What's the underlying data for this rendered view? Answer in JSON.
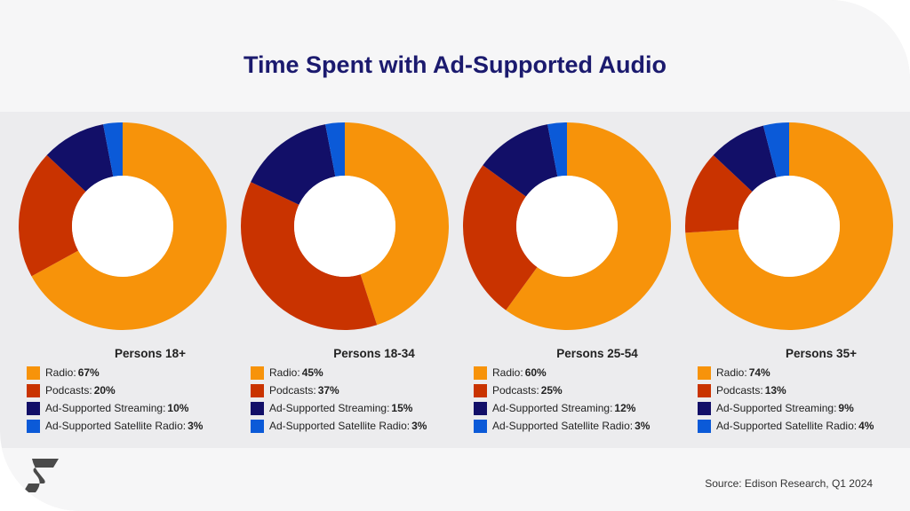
{
  "title": "Time Spent with Ad-Supported Audio",
  "source": "Source: Edison Research, Q1 2024",
  "colors": {
    "Radio": "#f7930a",
    "Podcasts": "#c93300",
    "Ad-Supported Streaming": "#120f68",
    "Ad-Supported Satellite Radio": "#0b5ad8"
  },
  "chart_data": [
    {
      "type": "pie",
      "title": "Persons 18+",
      "categories": [
        "Radio",
        "Podcasts",
        "Ad-Supported Streaming",
        "Ad-Supported Satellite Radio"
      ],
      "labels": [
        "Radio:",
        "Podcasts:",
        "Ad-Supported Streaming:",
        "Ad-Supported Satellite Radio:"
      ],
      "values": [
        67,
        20,
        10,
        3
      ],
      "value_labels": [
        "67%",
        "20%",
        "10%",
        "3%"
      ],
      "unit": "%"
    },
    {
      "type": "pie",
      "title": "Persons 18-34",
      "categories": [
        "Radio",
        "Podcasts",
        "Ad-Supported Streaming",
        "Ad-Supported Satellite Radio"
      ],
      "labels": [
        "Radio:",
        "Podcasts:",
        "Ad-Supported Streaming:",
        "Ad-Supported Satellite Radio:"
      ],
      "values": [
        45,
        37,
        15,
        3
      ],
      "value_labels": [
        "45%",
        "37%",
        "15%",
        "3%"
      ],
      "unit": "%"
    },
    {
      "type": "pie",
      "title": "Persons 25-54",
      "categories": [
        "Radio",
        "Podcasts",
        "Ad-Supported Streaming",
        "Ad-Supported Satellite Radio"
      ],
      "labels": [
        "Radio:",
        "Podcasts:",
        "Ad-Supported Streaming:",
        "Ad-Supported Satellite Radio:"
      ],
      "values": [
        60,
        25,
        12,
        3
      ],
      "value_labels": [
        "60%",
        "25%",
        "12%",
        "3%"
      ],
      "unit": "%"
    },
    {
      "type": "pie",
      "title": "Persons 35+",
      "categories": [
        "Radio",
        "Podcasts",
        "Ad-Supported Streaming",
        "Ad-Supported Satellite Radio"
      ],
      "labels": [
        "Radio:",
        "Podcasts:",
        "Ad-Supported Streaming:",
        "Ad-Supported Satellite Radio:"
      ],
      "values": [
        74,
        13,
        9,
        4
      ],
      "value_labels": [
        "74%",
        "13%",
        "9%",
        "4%"
      ],
      "unit": "%"
    }
  ]
}
